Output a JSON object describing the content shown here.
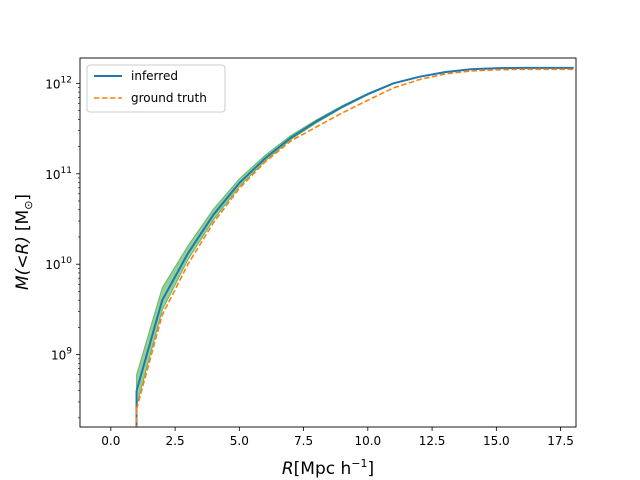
{
  "chart_data": {
    "type": "line",
    "title": "",
    "xlabel_main": "R",
    "xlabel_unit": "[Mpc h",
    "xlabel_sup": "−1",
    "xlabel_close": "]",
    "ylabel_main": "M(<R)",
    "ylabel_unit": "[M",
    "ylabel_sub": "⊙",
    "ylabel_close": "]",
    "xlim": [
      -1.2,
      18.1
    ],
    "ylim_log10": [
      8.2,
      12.28
    ],
    "yscale": "log",
    "xticks": [
      0.0,
      2.5,
      5.0,
      7.5,
      10.0,
      12.5,
      15.0,
      17.5
    ],
    "xtick_labels": [
      "0.0",
      "2.5",
      "5.0",
      "7.5",
      "10.0",
      "12.5",
      "15.0",
      "17.5"
    ],
    "yticks_exp": [
      9,
      10,
      11,
      12
    ],
    "ytick_base": "10",
    "grid": false,
    "legend_position": "upper-left",
    "series": [
      {
        "name": "inferred",
        "style": "solid",
        "color": "#1f77b4",
        "x": [
          1,
          2,
          3,
          4,
          5,
          6,
          7,
          8,
          9,
          10,
          11,
          12,
          13,
          14,
          15,
          16,
          17,
          18
        ],
        "y": [
          398000000.0,
          4000000000.0,
          13200000000.0,
          35500000000.0,
          79000000000.0,
          148000000000.0,
          250000000000.0,
          380000000000.0,
          550000000000.0,
          760000000000.0,
          1000000000000.0,
          1180000000000.0,
          1330000000000.0,
          1430000000000.0,
          1470000000000.0,
          1480000000000.0,
          1480000000000.0,
          1480000000000.0
        ]
      },
      {
        "name": "ground truth",
        "style": "dashed",
        "color": "#ff7f0e",
        "x": [
          1,
          2,
          3,
          4,
          5,
          6,
          7,
          8,
          9,
          10,
          11,
          12,
          13,
          14,
          15,
          16,
          17,
          18
        ],
        "y": [
          250000000.0,
          2750000000.0,
          10000000000.0,
          29000000000.0,
          69000000000.0,
          135000000000.0,
          230000000000.0,
          330000000000.0,
          470000000000.0,
          650000000000.0,
          890000000000.0,
          1100000000000.0,
          1270000000000.0,
          1370000000000.0,
          1410000000000.0,
          1430000000000.0,
          1430000000000.0,
          1430000000000.0
        ]
      }
    ],
    "uncertainty_band": {
      "color": "#2ca02c",
      "x": [
        1,
        2,
        3,
        4,
        5,
        6,
        7,
        8,
        9,
        10,
        11,
        12,
        13,
        14,
        15,
        16,
        17,
        18
      ],
      "y_low": [
        270000000.0,
        3100000000.0,
        11200000000.0,
        31000000000.0,
        72000000000.0,
        138000000000.0,
        238000000000.0,
        365000000000.0,
        535000000000.0,
        745000000000.0,
        990000000000.0,
        1170000000000.0,
        1320000000000.0,
        1420000000000.0,
        1460000000000.0,
        1470000000000.0,
        1470000000000.0,
        1470000000000.0
      ],
      "y_high": [
        600000000.0,
        5500000000.0,
        16000000000.0,
        41000000000.0,
        88000000000.0,
        160000000000.0,
        265000000000.0,
        395000000000.0,
        565000000000.0,
        775000000000.0,
        1010000000000.0,
        1190000000000.0,
        1340000000000.0,
        1440000000000.0,
        1480000000000.0,
        1490000000000.0,
        1490000000000.0,
        1490000000000.0
      ]
    }
  }
}
